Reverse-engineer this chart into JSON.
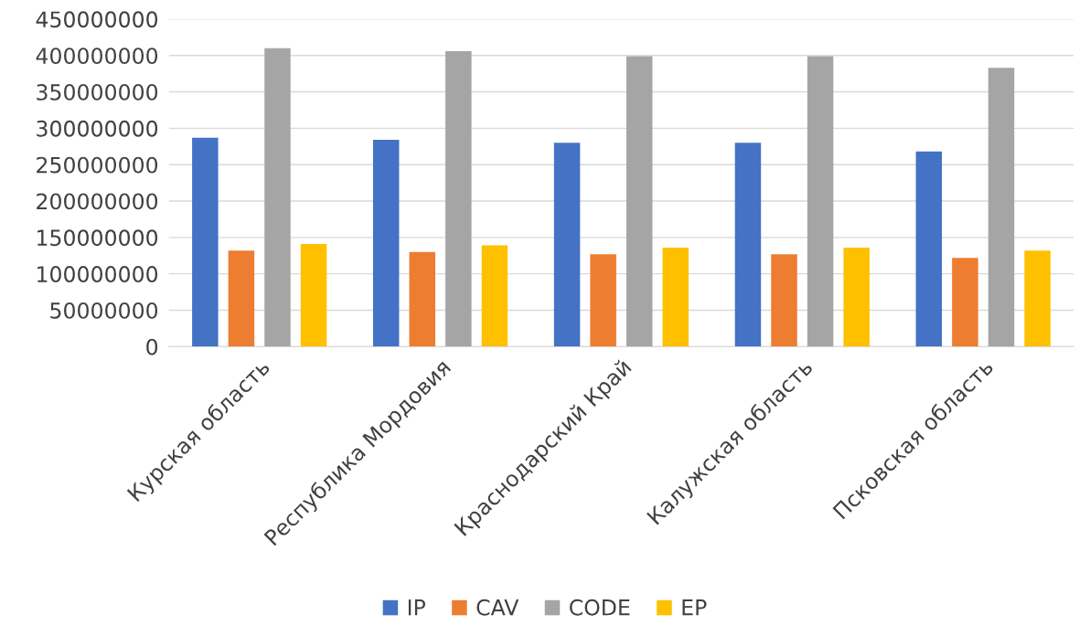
{
  "chart_data": {
    "type": "bar",
    "categories": [
      "Курская область",
      "Республика Мордовия",
      "Краснодарский Край",
      "Калужская область",
      "Псковская область"
    ],
    "series": [
      {
        "name": "IP",
        "color": "#4472c4",
        "values": [
          287000000,
          284000000,
          280000000,
          280000000,
          268000000
        ]
      },
      {
        "name": "CAV",
        "color": "#ed7d31",
        "values": [
          132000000,
          130000000,
          127000000,
          127000000,
          122000000
        ]
      },
      {
        "name": "CODE",
        "color": "#a5a5a5",
        "values": [
          410000000,
          406000000,
          399000000,
          399000000,
          383000000
        ]
      },
      {
        "name": "EP",
        "color": "#ffc000",
        "values": [
          141000000,
          139000000,
          136000000,
          136000000,
          132000000
        ]
      }
    ],
    "ylim": [
      0,
      450000000
    ],
    "yticks": [
      0,
      50000000,
      100000000,
      150000000,
      200000000,
      250000000,
      300000000,
      350000000,
      400000000,
      450000000
    ],
    "grid": "y",
    "legend": "bottom"
  }
}
